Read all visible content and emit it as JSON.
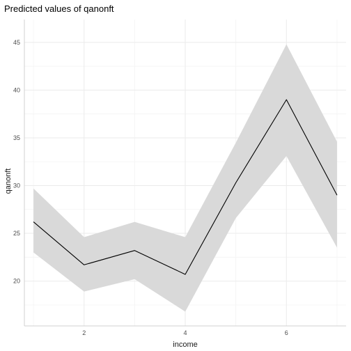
{
  "chart_data": {
    "type": "line",
    "title": "Predicted values of qanonft",
    "xlabel": "income",
    "ylabel": "qanonft",
    "x": [
      1,
      2,
      3,
      4,
      5,
      6,
      7
    ],
    "series": [
      {
        "values": [
          26.2,
          21.7,
          23.2,
          20.7,
          30.3,
          39.0,
          29.0
        ],
        "ci_lower": [
          23.0,
          18.9,
          20.2,
          16.8,
          26.6,
          33.1,
          23.5
        ],
        "ci_upper": [
          29.7,
          24.6,
          26.2,
          24.6,
          34.5,
          44.8,
          34.6
        ]
      }
    ],
    "xlim": [
      0.82,
      7.18
    ],
    "ylim": [
      15.3,
      47.4
    ],
    "xticks": [
      2,
      4,
      6
    ],
    "yticks": [
      20,
      25,
      30,
      35,
      40,
      45
    ],
    "grid": true,
    "colors": {
      "line": "#000000",
      "ribbon": "#d9d9d9",
      "grid_major": "#ebebeb",
      "grid_minor": "#f4f4f4"
    }
  }
}
